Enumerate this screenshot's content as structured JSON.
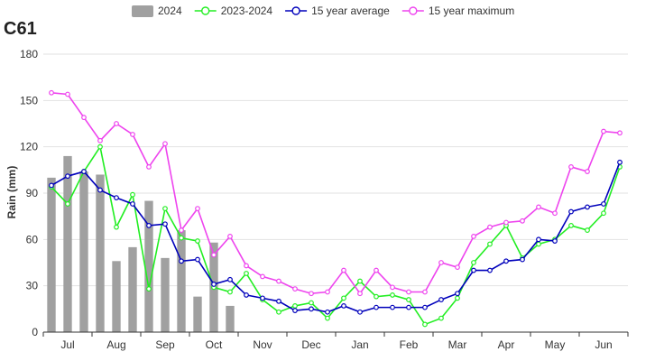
{
  "chart_data": {
    "type": "bar",
    "title": "C61",
    "ylabel": "Rain (mm)",
    "ylim": [
      0,
      180
    ],
    "yticks": [
      0,
      30,
      60,
      90,
      120,
      150,
      180
    ],
    "grid": true,
    "legend_position": "top",
    "month_labels": [
      "Jul",
      "Aug",
      "Sep",
      "Oct",
      "Nov",
      "Dec",
      "Jan",
      "Feb",
      "Mar",
      "Apr",
      "May",
      "Jun"
    ],
    "n_periods": 36,
    "series": [
      {
        "name": "2024",
        "kind": "bar",
        "color": "#a0a0a0",
        "values": [
          100,
          114,
          104,
          102,
          46,
          55,
          85,
          48,
          66,
          23,
          58,
          17
        ]
      },
      {
        "name": "2023-2024",
        "kind": "line",
        "color": "#22ee22",
        "values": [
          94,
          83,
          104,
          120,
          68,
          89,
          28,
          80,
          61,
          59,
          29,
          26,
          38,
          21,
          13,
          17,
          19,
          9,
          22,
          33,
          23,
          24,
          21,
          5,
          9,
          22,
          45,
          57,
          69,
          48,
          57,
          60,
          69,
          66,
          77,
          107
        ]
      },
      {
        "name": "15 year average",
        "kind": "line",
        "color": "#0000bb",
        "values": [
          95,
          101,
          104,
          92,
          87,
          83,
          69,
          70,
          46,
          47,
          31,
          34,
          24,
          22,
          20,
          14,
          15,
          13,
          17,
          13,
          16,
          16,
          16,
          16,
          21,
          25,
          40,
          40,
          46,
          47,
          60,
          59,
          78,
          81,
          83,
          110
        ]
      },
      {
        "name": "15 year maximum",
        "kind": "line",
        "color": "#ee44ee",
        "values": [
          155,
          154,
          139,
          124,
          135,
          128,
          107,
          122,
          66,
          80,
          50,
          62,
          43,
          36,
          33,
          28,
          25,
          26,
          40,
          25,
          40,
          29,
          26,
          26,
          45,
          42,
          62,
          68,
          71,
          72,
          81,
          77,
          107,
          104,
          130,
          129
        ]
      }
    ]
  }
}
